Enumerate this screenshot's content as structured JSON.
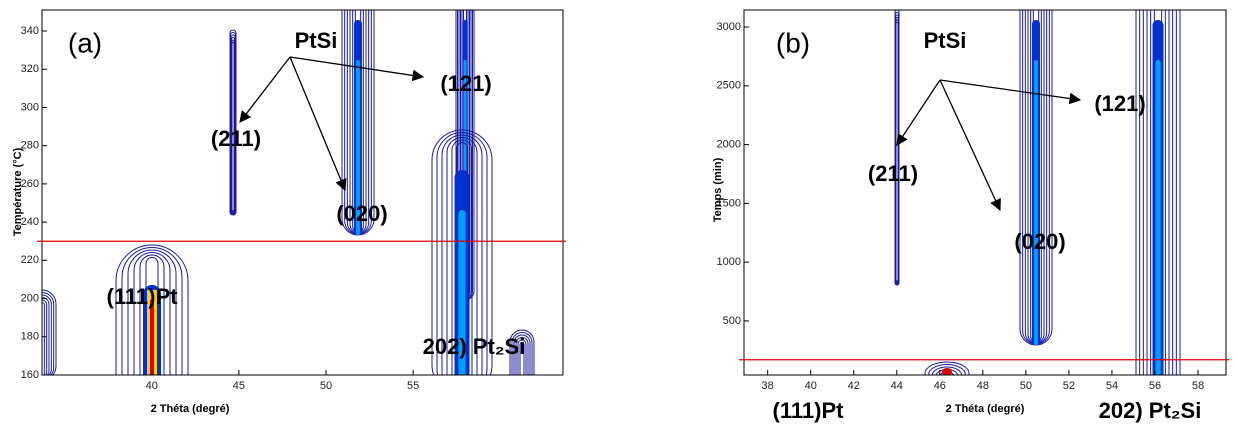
{
  "chart_data": [
    {
      "type": "contour",
      "panel_label": "(a)",
      "xlabel": "2 Théta (degré)",
      "ylabel": "Température (°C)",
      "xlim": [
        33.7,
        63.6
      ],
      "xticks": [
        40,
        45,
        50,
        55
      ],
      "ylim": [
        160,
        351
      ],
      "yticks": [
        160,
        180,
        200,
        220,
        240,
        260,
        280,
        300,
        320,
        340
      ],
      "reference_line": 230,
      "reference_color": "#e00000",
      "color": "#1a1aa0",
      "annotations": [
        "PtSi",
        "(121)",
        "(211)",
        "(020)",
        "(111)Pt",
        "202) Pt₂Si"
      ]
    },
    {
      "type": "contour",
      "panel_label": "(b)",
      "xlabel": "2 Théta (degré)",
      "ylabel": "Temps (min)",
      "xlim": [
        36.9,
        59.3
      ],
      "xticks": [
        38,
        40,
        42,
        44,
        46,
        48,
        50,
        52,
        54,
        56,
        58
      ],
      "ylim": [
        40,
        3145
      ],
      "yticks": [
        500,
        1000,
        1500,
        2000,
        2500,
        3000
      ],
      "reference_line": 170,
      "reference_color": "#e00000",
      "color": "#1a1aa0",
      "annotations": [
        "PtSi",
        "(121)",
        "(211)",
        "(020)",
        "(111)Pt",
        "202) Pt₂Si"
      ]
    }
  ]
}
